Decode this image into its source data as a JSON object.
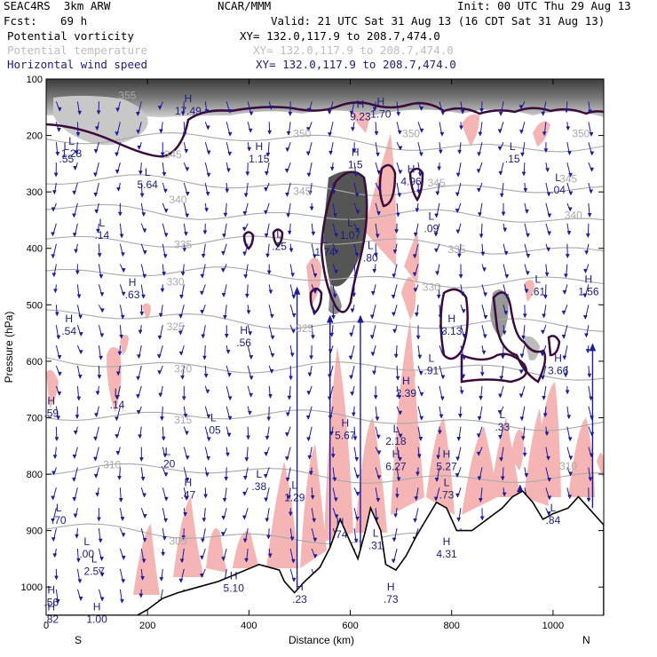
{
  "header": {
    "model": "SEAC4RS  3km ARW",
    "org": "NCAR/MMM",
    "init": "Init: 00 UTC Thu 29 Aug 13",
    "fcst_label": "Fcst:",
    "fcst_value": "69 h",
    "valid": "Valid: 21 UTC Sat 31 Aug 13 (16 CDT Sat 31 Aug 13)"
  },
  "fields": [
    {
      "label": "Potential vorticity",
      "xy": "XY= 132.0,117.9 to 208.7,474.0",
      "color": "#000000"
    },
    {
      "label": "Potential temperature",
      "xy": "XY= 132.0,117.9 to 208.7,474.0",
      "color": "#bdbdbd"
    },
    {
      "label": "Horizontal wind speed",
      "xy": "XY= 132.0,117.9 to 208.7,474.0",
      "color": "#1c1c7a"
    }
  ],
  "colors": {
    "pv_contour": "#3a0a3a",
    "pv_fill_dark": "#3c3c3c",
    "pv_fill_light": "#b4b4b4",
    "theta": "#a9a9a9",
    "wind": "#1c1c9a",
    "shade": "#f6b5b5",
    "terrain": "#000000"
  },
  "chart_data": {
    "type": "cross-section",
    "xlabel": "Distance (km)",
    "ylabel": "Pressure (hPa)",
    "xlim": [
      0,
      1100
    ],
    "ylim": [
      1050,
      100
    ],
    "x_ticks": [
      "0",
      "200",
      "400",
      "600",
      "800",
      "1000"
    ],
    "y_ticks": [
      "100",
      "200",
      "300",
      "400",
      "500",
      "600",
      "700",
      "800",
      "900",
      "1000"
    ],
    "endpoints": {
      "left": "S",
      "right": "N"
    },
    "theta_levels": [
      {
        "label": "350",
        "p": 200
      },
      {
        "label": "345",
        "p": 280
      },
      {
        "label": "340",
        "p": 330
      },
      {
        "label": "335",
        "p": 380
      },
      {
        "label": "330",
        "p": 440
      },
      {
        "label": "325",
        "p": 520
      },
      {
        "label": "320",
        "p": 600
      },
      {
        "label": "315",
        "p": 690
      },
      {
        "label": "310",
        "p": 790
      },
      {
        "label": "305",
        "p": 900
      }
    ],
    "theta_labels": [
      {
        "text": "355",
        "x": 160,
        "p": 135
      },
      {
        "text": "350",
        "x": 505,
        "p": 203
      },
      {
        "text": "350",
        "x": 720,
        "p": 203
      },
      {
        "text": "350",
        "x": 1055,
        "p": 203
      },
      {
        "text": "345",
        "x": 250,
        "p": 240
      },
      {
        "text": "345",
        "x": 505,
        "p": 305
      },
      {
        "text": "345",
        "x": 770,
        "p": 290
      },
      {
        "text": "345",
        "x": 1030,
        "p": 283
      },
      {
        "text": "340",
        "x": 260,
        "p": 320
      },
      {
        "text": "340",
        "x": 1040,
        "p": 348
      },
      {
        "text": "335",
        "x": 270,
        "p": 400
      },
      {
        "text": "335",
        "x": 810,
        "p": 408
      },
      {
        "text": "330",
        "x": 255,
        "p": 466
      },
      {
        "text": "330",
        "x": 760,
        "p": 475
      },
      {
        "text": "325",
        "x": 255,
        "p": 545
      },
      {
        "text": "325",
        "x": 510,
        "p": 548
      },
      {
        "text": "320",
        "x": 270,
        "p": 620
      },
      {
        "text": "315",
        "x": 270,
        "p": 710
      },
      {
        "text": "310",
        "x": 130,
        "p": 790
      },
      {
        "text": "310",
        "x": 1030,
        "p": 792
      },
      {
        "text": "305",
        "x": 260,
        "p": 925
      }
    ],
    "hl_markers": [
      {
        "t": "H",
        "v": "17.49",
        "x": 280,
        "p": 160
      },
      {
        "t": "H",
        "v": "9.23",
        "x": 620,
        "p": 170
      },
      {
        "t": "H",
        "v": "1.70",
        "x": 660,
        "p": 165
      },
      {
        "t": "H",
        "v": "4.96",
        "x": 720,
        "p": 285
      },
      {
        "t": "H",
        "v": "1.5",
        "x": 610,
        "p": 255
      },
      {
        "t": "L",
        "v": "1.28",
        "x": 50,
        "p": 235
      },
      {
        "t": "L",
        "v": ".55",
        "x": 40,
        "p": 245
      },
      {
        "t": "L",
        "v": "5.64",
        "x": 200,
        "p": 290
      },
      {
        "t": "H",
        "v": "1.15",
        "x": 420,
        "p": 245
      },
      {
        "t": "L",
        "v": ".15",
        "x": 920,
        "p": 245
      },
      {
        "t": "L",
        "v": ".04",
        "x": 1010,
        "p": 300
      },
      {
        "t": "L",
        "v": ".14",
        "x": 110,
        "p": 380
      },
      {
        "t": "L",
        "v": ".25",
        "x": 460,
        "p": 400
      },
      {
        "t": "L",
        "v": "1.07",
        "x": 600,
        "p": 380
      },
      {
        "t": "L",
        "v": "1.74",
        "x": 550,
        "p": 410
      },
      {
        "t": "L",
        "v": ".80",
        "x": 640,
        "p": 420
      },
      {
        "t": "L",
        "v": ".09",
        "x": 760,
        "p": 368
      },
      {
        "t": "H",
        "v": ".63",
        "x": 170,
        "p": 485
      },
      {
        "t": "H",
        "v": ".54",
        "x": 45,
        "p": 550
      },
      {
        "t": "H",
        "v": ".56",
        "x": 390,
        "p": 570
      },
      {
        "t": "H",
        "v": "3.13",
        "x": 800,
        "p": 550
      },
      {
        "t": "L",
        "v": ".61",
        "x": 970,
        "p": 480
      },
      {
        "t": "H",
        "v": "1.56",
        "x": 1070,
        "p": 480
      },
      {
        "t": "L",
        "v": ".91",
        "x": 760,
        "p": 620
      },
      {
        "t": "H",
        "v": "2.39",
        "x": 710,
        "p": 660
      },
      {
        "t": "H",
        "v": "3.66",
        "x": 1010,
        "p": 620
      },
      {
        "t": "L",
        "v": ".14",
        "x": 140,
        "p": 680
      },
      {
        "t": "L",
        "v": ".05",
        "x": 330,
        "p": 725
      },
      {
        "t": "L",
        "v": ".20",
        "x": 240,
        "p": 785
      },
      {
        "t": "H",
        "v": "5.67",
        "x": 590,
        "p": 735
      },
      {
        "t": "L",
        "v": "2.18",
        "x": 690,
        "p": 745
      },
      {
        "t": "H",
        "v": "6.27",
        "x": 690,
        "p": 790
      },
      {
        "t": "H",
        "v": "5.27",
        "x": 790,
        "p": 790
      },
      {
        "t": "L",
        "v": ".33",
        "x": 900,
        "p": 720
      },
      {
        "t": "H",
        "v": ".47",
        "x": 280,
        "p": 840
      },
      {
        "t": "L",
        "v": ".38",
        "x": 420,
        "p": 825
      },
      {
        "t": "L",
        "v": "1.29",
        "x": 490,
        "p": 845
      },
      {
        "t": "L",
        "v": ".73",
        "x": 790,
        "p": 840
      },
      {
        "t": "L",
        "v": ".70",
        "x": 25,
        "p": 885
      },
      {
        "t": "H",
        "v": ".74",
        "x": 580,
        "p": 910
      },
      {
        "t": "L",
        "v": ".31",
        "x": 650,
        "p": 930
      },
      {
        "t": "H",
        "v": "4.31",
        "x": 790,
        "p": 945
      },
      {
        "t": "L",
        "v": ".84",
        "x": 1000,
        "p": 885
      },
      {
        "t": "L",
        "v": ".00",
        "x": 80,
        "p": 945
      },
      {
        "t": "L",
        "v": "2.57",
        "x": 95,
        "p": 975
      },
      {
        "t": "H",
        "v": "5.10",
        "x": 370,
        "p": 1005
      },
      {
        "t": "H",
        "v": ".23",
        "x": 500,
        "p": 1025
      },
      {
        "t": "H",
        "v": ".73",
        "x": 680,
        "p": 1025
      },
      {
        "t": "H",
        "v": "1.00",
        "x": 100,
        "p": 1060
      },
      {
        "t": "H",
        "v": ".56",
        "x": 10,
        "p": 1030
      },
      {
        "t": "H",
        "v": ".82",
        "x": 10,
        "p": 1060
      },
      {
        "t": "H",
        "v": ".59",
        "x": 10,
        "p": 695
      }
    ],
    "terrain": [
      [
        0,
        1050
      ],
      [
        180,
        1050
      ],
      [
        200,
        1040
      ],
      [
        230,
        1020
      ],
      [
        260,
        1010
      ],
      [
        300,
        1000
      ],
      [
        340,
        990
      ],
      [
        380,
        975
      ],
      [
        420,
        960
      ],
      [
        460,
        970
      ],
      [
        470,
        990
      ],
      [
        490,
        1010
      ],
      [
        510,
        990
      ],
      [
        540,
        965
      ],
      [
        560,
        930
      ],
      [
        580,
        880
      ],
      [
        600,
        920
      ],
      [
        615,
        950
      ],
      [
        630,
        900
      ],
      [
        640,
        860
      ],
      [
        660,
        900
      ],
      [
        670,
        960
      ],
      [
        690,
        970
      ],
      [
        710,
        945
      ],
      [
        730,
        910
      ],
      [
        750,
        880
      ],
      [
        770,
        850
      ],
      [
        790,
        860
      ],
      [
        810,
        900
      ],
      [
        840,
        900
      ],
      [
        870,
        880
      ],
      [
        900,
        860
      ],
      [
        920,
        840
      ],
      [
        940,
        830
      ],
      [
        960,
        850
      ],
      [
        980,
        880
      ],
      [
        1000,
        870
      ],
      [
        1030,
        860
      ],
      [
        1050,
        840
      ],
      [
        1070,
        860
      ],
      [
        1090,
        880
      ],
      [
        1100,
        890
      ]
    ]
  }
}
